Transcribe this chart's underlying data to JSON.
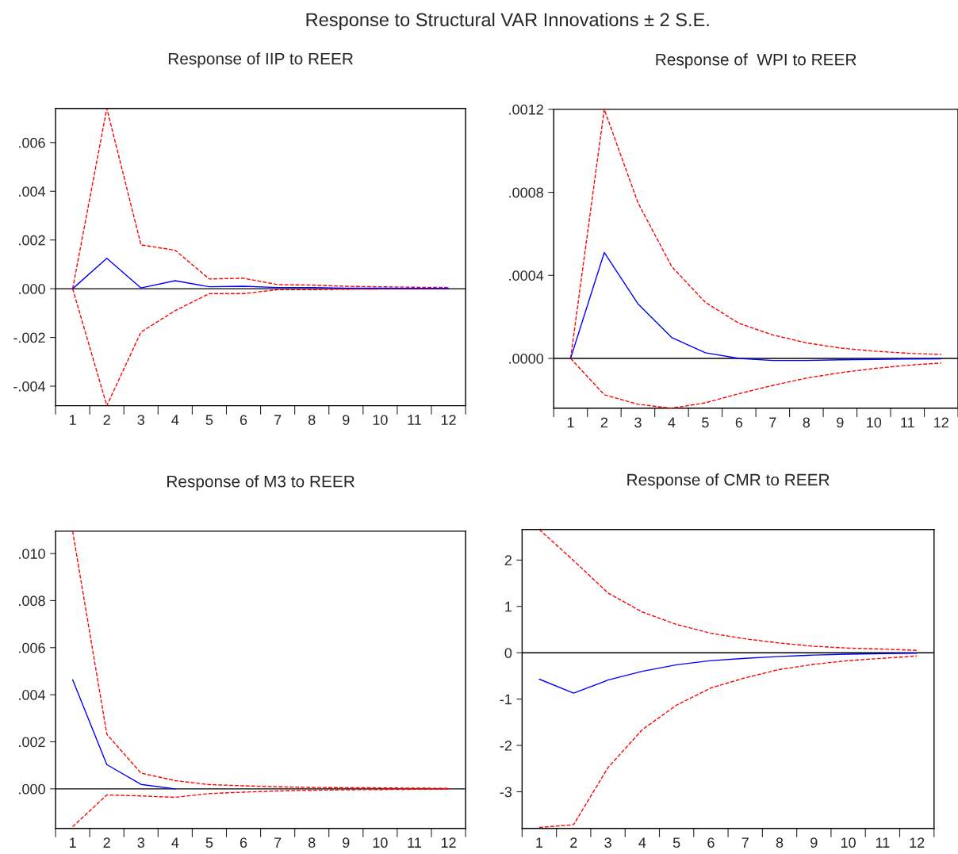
{
  "chart_data": [
    {
      "type": "other",
      "title": "Response to Structural VAR Innovations ± 2 S.E."
    },
    {
      "type": "line",
      "title": "Response of IIP to REER",
      "categories": [
        "1",
        "2",
        "3",
        "4",
        "5",
        "6",
        "7",
        "8",
        "9",
        "10",
        "11",
        "12"
      ],
      "ylim": [
        -0.0048,
        0.0074
      ],
      "yticks": [
        {
          "value": -0.004,
          "label": "-.004"
        },
        {
          "value": -0.002,
          "label": "-.002"
        },
        {
          "value": 0.0,
          "label": ".000"
        },
        {
          "value": 0.002,
          "label": ".002"
        },
        {
          "value": 0.004,
          "label": ".004"
        },
        {
          "value": 0.006,
          "label": ".006"
        }
      ],
      "ref_lines": [
        {
          "axis": "y",
          "value": 0,
          "color": "#000000"
        }
      ],
      "series": [
        {
          "color": "#0000ff",
          "line_style": "solid",
          "values": [
            0,
            0.00125,
            3e-05,
            0.00033,
            8e-05,
            0.0001,
            5e-05,
            5e-05,
            2e-05,
            2e-05,
            1e-05,
            1e-05
          ]
        },
        {
          "color": "#ff0000",
          "line_style": "dashed",
          "values": [
            0,
            0.0074,
            0.0018,
            0.00158,
            0.0004,
            0.00043,
            0.00017,
            0.00015,
            0.0001,
            8e-05,
            6e-05,
            5e-05
          ]
        },
        {
          "color": "#ff0000",
          "line_style": "dashed",
          "values": [
            0,
            -0.0048,
            -0.00178,
            -0.0009,
            -0.0002,
            -0.0002,
            -4e-05,
            -4e-05,
            -2e-05,
            -1e-05,
            -1e-05,
            -5e-06
          ]
        }
      ]
    },
    {
      "type": "line",
      "title": "Response of  WPI to REER",
      "categories": [
        "1",
        "2",
        "3",
        "4",
        "5",
        "6",
        "7",
        "8",
        "9",
        "10",
        "11",
        "12"
      ],
      "ylim": [
        -0.00024,
        0.0012
      ],
      "yticks": [
        {
          "value": 0.0,
          "label": ".0000"
        },
        {
          "value": 0.0004,
          "label": ".0004"
        },
        {
          "value": 0.0008,
          "label": ".0008"
        },
        {
          "value": 0.0012,
          "label": ".0012"
        }
      ],
      "ref_lines": [
        {
          "axis": "y",
          "value": 0,
          "color": "#000000"
        }
      ],
      "series": [
        {
          "color": "#0000ff",
          "line_style": "solid",
          "values": [
            0,
            0.00051,
            0.000263,
            0.000101,
            2.7e-05,
            0,
            -1e-05,
            -1e-05,
            -7e-06,
            -5e-06,
            -3e-06,
            -2e-06
          ]
        },
        {
          "color": "#ff0000",
          "line_style": "dashed",
          "values": [
            0,
            0.0012,
            0.00075,
            0.000443,
            0.00027,
            0.000169,
            0.000113,
            7.5e-05,
            5e-05,
            3.5e-05,
            2.5e-05,
            1.9e-05
          ]
        },
        {
          "color": "#ff0000",
          "line_style": "dashed",
          "values": [
            0,
            -0.000175,
            -0.000221,
            -0.00024,
            -0.000214,
            -0.00017,
            -0.00013,
            -9.5e-05,
            -6.9e-05,
            -4.9e-05,
            -3.3e-05,
            -2.2e-05
          ]
        }
      ]
    },
    {
      "type": "line",
      "title": "Response of M3 to REER",
      "categories": [
        "1",
        "2",
        "3",
        "4",
        "5",
        "6",
        "7",
        "8",
        "9",
        "10",
        "11",
        "12"
      ],
      "ylim": [
        -0.00168,
        0.01095
      ],
      "yticks": [
        {
          "value": 0.0,
          "label": ".000"
        },
        {
          "value": 0.002,
          "label": ".002"
        },
        {
          "value": 0.004,
          "label": ".004"
        },
        {
          "value": 0.006,
          "label": ".006"
        },
        {
          "value": 0.008,
          "label": ".008"
        },
        {
          "value": 0.01,
          "label": ".010"
        }
      ],
      "ref_lines": [
        {
          "axis": "y",
          "value": 0,
          "color": "#000000"
        }
      ],
      "series": [
        {
          "color": "#0000ff",
          "line_style": "solid",
          "values": [
            0.00464,
            0.00103,
            0.00019,
            0,
            null,
            null,
            null,
            null,
            null,
            null,
            null,
            null
          ]
        },
        {
          "color": "#ff0000",
          "line_style": "dashed",
          "values": [
            0.01095,
            0.00232,
            0.00067,
            0.00035,
            0.00018,
            0.00013,
            9e-05,
            6e-05,
            5e-05,
            4e-05,
            3e-05,
            2e-05
          ]
        },
        {
          "color": "#ff0000",
          "line_style": "dashed",
          "values": [
            -0.00161,
            -0.00026,
            -0.0003,
            -0.00036,
            -0.0002,
            -0.00014,
            -9e-05,
            -6e-05,
            -4e-05,
            -3e-05,
            -2e-05,
            -1e-05
          ]
        }
      ]
    },
    {
      "type": "line",
      "title": "Response of CMR to REER",
      "categories": [
        "1",
        "2",
        "3",
        "4",
        "5",
        "6",
        "7",
        "8",
        "9",
        "10",
        "11",
        "12"
      ],
      "ylim": [
        -3.79,
        2.66
      ],
      "yticks": [
        -3,
        -2,
        -1,
        0,
        1,
        2
      ],
      "ref_lines": [
        {
          "axis": "y",
          "value": 0,
          "color": "#000000"
        }
      ],
      "series": [
        {
          "color": "#0000ff",
          "line_style": "solid",
          "values": [
            -0.57,
            -0.87,
            -0.59,
            -0.4,
            -0.26,
            -0.17,
            -0.12,
            -0.08,
            -0.05,
            -0.03,
            -0.02,
            -0.01
          ]
        },
        {
          "color": "#ff0000",
          "line_style": "dashed",
          "values": [
            2.66,
            1.99,
            1.29,
            0.88,
            0.61,
            0.42,
            0.3,
            0.21,
            0.14,
            0.1,
            0.08,
            0.05
          ]
        },
        {
          "color": "#ff0000",
          "line_style": "dashed",
          "values": [
            -3.77,
            -3.71,
            -2.48,
            -1.66,
            -1.13,
            -0.76,
            -0.54,
            -0.36,
            -0.25,
            -0.17,
            -0.12,
            -0.07
          ]
        }
      ]
    }
  ]
}
